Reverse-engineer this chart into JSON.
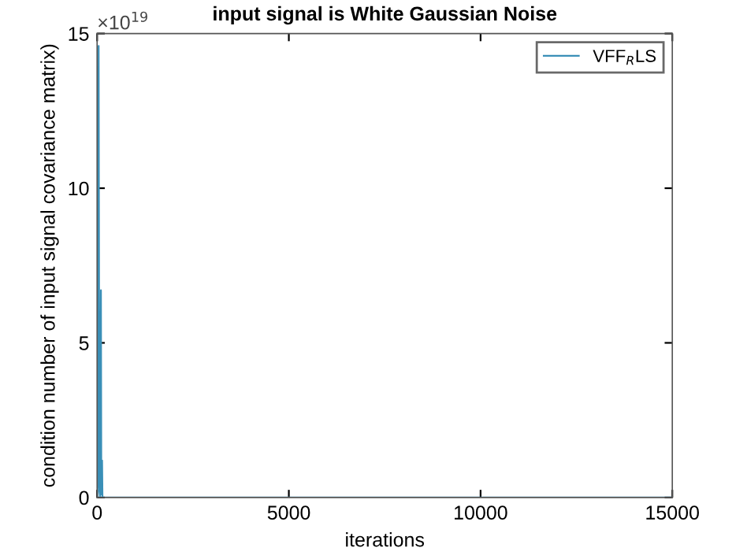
{
  "chart_data": {
    "type": "line",
    "title": "input signal is White Gaussian Noise",
    "xlabel": "iterations",
    "ylabel": "condition number of input signal covariance matrix)",
    "annotations": [
      "×10$^{19}$"
    ],
    "series": [
      {
        "name": "VFF$_{R}$LS",
        "color": "#3a8fb7",
        "x": [
          0,
          20,
          40,
          60,
          80,
          100,
          110,
          130,
          140,
          200,
          1000,
          15000
        ],
        "values": [
          0,
          0.5,
          14.6,
          0.2,
          0,
          6.7,
          0.1,
          1.2,
          0,
          0,
          0,
          0
        ]
      }
    ],
    "xlim": [
      0,
      15000
    ],
    "ylim": [
      0,
      15
    ],
    "xticks": [
      0,
      5000,
      10000,
      15000
    ],
    "yticks": [
      0,
      5,
      10,
      15
    ],
    "grid": false,
    "legend": "top right",
    "marker": "none",
    "line_style": "solid"
  }
}
